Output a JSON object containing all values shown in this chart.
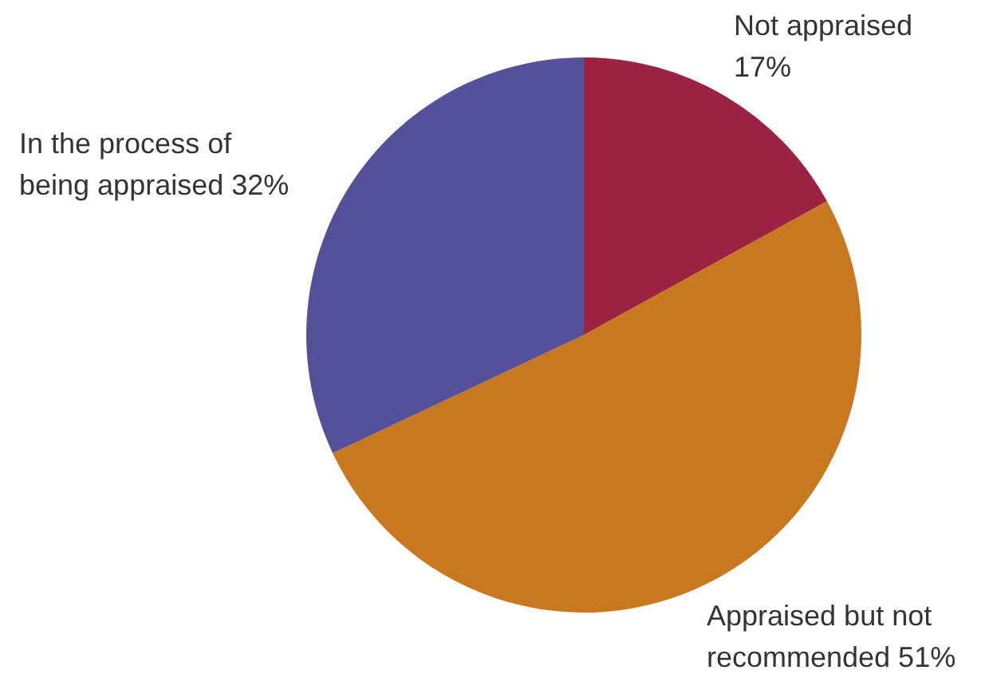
{
  "chart_data": {
    "type": "pie",
    "categories": [
      "Not appraised",
      "Appraised but not recommended",
      "In the process of being appraised"
    ],
    "values": [
      17,
      51,
      32
    ],
    "colors": [
      "#9b2242",
      "#c8781f",
      "#54509a"
    ],
    "value_labels": [
      "17%",
      "51%",
      "32%"
    ]
  }
}
